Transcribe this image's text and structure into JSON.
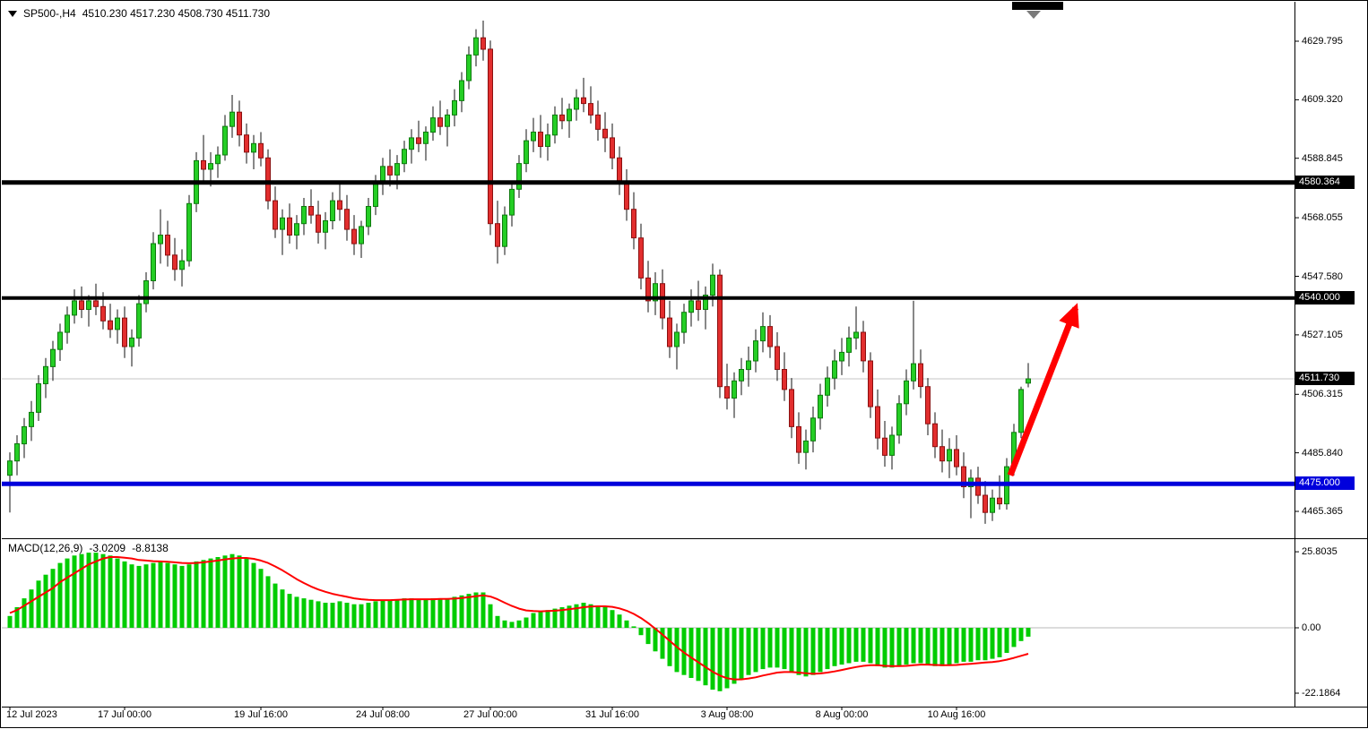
{
  "header": {
    "title": "SP500-,H4",
    "ohlc": "4510.230 4517.230 4508.730 4511.730"
  },
  "macd_label": {
    "name": "MACD(12,26,9)",
    "value": "-3.0209",
    "signal_value": "-8.8138"
  },
  "colors": {
    "bull": "#25CE25",
    "bull_border": "#0E7A0E",
    "bear": "#E22E2E",
    "bear_border": "#8B1010",
    "wick": "#111111",
    "macd_histogram": "#00CC00",
    "macd_signal": "#FF0000",
    "current_price_line": "#C4C4C4",
    "axis_text": "#000000"
  },
  "chart_data": [
    {
      "type": "candlestick",
      "title": "SP500- H4",
      "timeframe": "H4",
      "ohlc_current": {
        "open": 4510.23,
        "high": 4517.23,
        "low": 4508.73,
        "close": 4511.73
      },
      "ylim": [
        4455,
        4645
      ],
      "y_ticks": [
        "4629.795",
        "4609.320",
        "4588.845",
        "4568.055",
        "4547.580",
        "4527.105",
        "4506.315",
        "4485.840",
        "4465.365"
      ],
      "x_labels": [
        {
          "label": "12 Jul 2023",
          "bar": 0
        },
        {
          "label": "17 Jul 00:00",
          "bar": 16
        },
        {
          "label": "19 Jul 16:00",
          "bar": 35
        },
        {
          "label": "24 Jul 08:00",
          "bar": 52
        },
        {
          "label": "27 Jul 00:00",
          "bar": 67
        },
        {
          "label": "31 Jul 16:00",
          "bar": 84
        },
        {
          "label": "3 Aug 08:00",
          "bar": 100
        },
        {
          "label": "8 Aug 00:00",
          "bar": 116
        },
        {
          "label": "10 Aug 16:00",
          "bar": 132
        }
      ],
      "levels": [
        {
          "price": 4580.364,
          "label": "4580.364",
          "color": "#000000",
          "width": 5
        },
        {
          "price": 4540.0,
          "label": "4540.000",
          "color": "#000000",
          "width": 4
        },
        {
          "price": 4475.0,
          "label": "4475.000",
          "color": "#0000DC",
          "width": 5
        }
      ],
      "current_price": {
        "value": 4511.73,
        "label": "4511.730"
      },
      "annotation_arrow": {
        "from": {
          "bar": 139.5,
          "price": 4478
        },
        "to": {
          "bar": 148.6,
          "price": 4536.5
        },
        "color": "#FF0000"
      },
      "candles": [
        [
          4478,
          4486,
          4465,
          4483
        ],
        [
          4483,
          4492,
          4478,
          4489
        ],
        [
          4489,
          4498,
          4484,
          4495
        ],
        [
          4495,
          4504,
          4490,
          4500
        ],
        [
          4500,
          4513,
          4497,
          4510
        ],
        [
          4510,
          4519,
          4505,
          4516
        ],
        [
          4516,
          4525,
          4511,
          4522
        ],
        [
          4522,
          4531,
          4518,
          4528
        ],
        [
          4528,
          4537,
          4524,
          4534
        ],
        [
          4534,
          4543,
          4531,
          4539
        ],
        [
          4539,
          4544,
          4533,
          4536
        ],
        [
          4536,
          4541,
          4530,
          4539
        ],
        [
          4539,
          4545,
          4534,
          4537
        ],
        [
          4537,
          4542,
          4529,
          4532
        ],
        [
          4532,
          4538,
          4526,
          4529
        ],
        [
          4529,
          4536,
          4524,
          4533
        ],
        [
          4533,
          4537,
          4519,
          4523
        ],
        [
          4523,
          4529,
          4516,
          4526
        ],
        [
          4526,
          4541,
          4523,
          4538
        ],
        [
          4538,
          4549,
          4535,
          4546
        ],
        [
          4546,
          4563,
          4543,
          4559
        ],
        [
          4559,
          4571,
          4552,
          4562
        ],
        [
          4562,
          4567,
          4551,
          4555
        ],
        [
          4555,
          4561,
          4546,
          4550
        ],
        [
          4550,
          4557,
          4544,
          4553
        ],
        [
          4553,
          4576,
          4551,
          4573
        ],
        [
          4573,
          4591,
          4570,
          4588
        ],
        [
          4588,
          4597,
          4581,
          4585
        ],
        [
          4585,
          4591,
          4579,
          4587
        ],
        [
          4587,
          4593,
          4582,
          4590
        ],
        [
          4590,
          4604,
          4588,
          4600
        ],
        [
          4600,
          4611,
          4596,
          4605
        ],
        [
          4605,
          4609,
          4593,
          4597
        ],
        [
          4597,
          4601,
          4587,
          4591
        ],
        [
          4591,
          4597,
          4585,
          4594
        ],
        [
          4594,
          4598,
          4586,
          4589
        ],
        [
          4589,
          4592,
          4571,
          4574
        ],
        [
          4574,
          4579,
          4561,
          4564
        ],
        [
          4564,
          4571,
          4555,
          4568
        ],
        [
          4568,
          4573,
          4559,
          4562
        ],
        [
          4562,
          4569,
          4557,
          4566
        ],
        [
          4566,
          4575,
          4562,
          4572
        ],
        [
          4572,
          4578,
          4566,
          4569
        ],
        [
          4569,
          4574,
          4559,
          4563
        ],
        [
          4563,
          4570,
          4557,
          4567
        ],
        [
          4567,
          4577,
          4564,
          4574
        ],
        [
          4574,
          4580,
          4567,
          4571
        ],
        [
          4571,
          4576,
          4560,
          4564
        ],
        [
          4564,
          4569,
          4555,
          4559
        ],
        [
          4559,
          4567,
          4554,
          4565
        ],
        [
          4565,
          4575,
          4562,
          4572
        ],
        [
          4572,
          4583,
          4569,
          4580
        ],
        [
          4580,
          4589,
          4576,
          4586
        ],
        [
          4586,
          4592,
          4579,
          4583
        ],
        [
          4583,
          4590,
          4578,
          4587
        ],
        [
          4587,
          4595,
          4584,
          4592
        ],
        [
          4592,
          4599,
          4587,
          4596
        ],
        [
          4596,
          4602,
          4591,
          4594
        ],
        [
          4594,
          4600,
          4588,
          4598
        ],
        [
          4598,
          4607,
          4595,
          4603
        ],
        [
          4603,
          4609,
          4597,
          4600
        ],
        [
          4600,
          4606,
          4593,
          4604
        ],
        [
          4604,
          4613,
          4600,
          4609
        ],
        [
          4609,
          4619,
          4605,
          4616
        ],
        [
          4616,
          4628,
          4613,
          4625
        ],
        [
          4625,
          4634,
          4621,
          4631
        ],
        [
          4631,
          4637,
          4623,
          4627
        ],
        [
          4627,
          4630,
          4562,
          4566
        ],
        [
          4566,
          4574,
          4552,
          4558
        ],
        [
          4558,
          4572,
          4555,
          4569
        ],
        [
          4569,
          4581,
          4565,
          4578
        ],
        [
          4578,
          4590,
          4575,
          4587
        ],
        [
          4587,
          4599,
          4584,
          4595
        ],
        [
          4595,
          4603,
          4591,
          4598
        ],
        [
          4598,
          4604,
          4589,
          4593
        ],
        [
          4593,
          4601,
          4588,
          4597
        ],
        [
          4597,
          4607,
          4594,
          4604
        ],
        [
          4604,
          4610,
          4599,
          4602
        ],
        [
          4602,
          4608,
          4596,
          4606
        ],
        [
          4606,
          4613,
          4602,
          4610
        ],
        [
          4610,
          4617,
          4605,
          4608
        ],
        [
          4608,
          4614,
          4601,
          4604
        ],
        [
          4604,
          4609,
          4595,
          4599
        ],
        [
          4599,
          4605,
          4591,
          4596
        ],
        [
          4596,
          4601,
          4585,
          4589
        ],
        [
          4589,
          4593,
          4576,
          4580
        ],
        [
          4580,
          4585,
          4567,
          4571
        ],
        [
          4571,
          4577,
          4557,
          4561
        ],
        [
          4561,
          4566,
          4543,
          4547
        ],
        [
          4547,
          4553,
          4535,
          4539
        ],
        [
          4539,
          4549,
          4534,
          4545
        ],
        [
          4545,
          4550,
          4529,
          4533
        ],
        [
          4533,
          4539,
          4519,
          4523
        ],
        [
          4523,
          4531,
          4515,
          4528
        ],
        [
          4528,
          4538,
          4524,
          4535
        ],
        [
          4535,
          4543,
          4530,
          4539
        ],
        [
          4539,
          4546,
          4532,
          4536
        ],
        [
          4536,
          4544,
          4529,
          4541
        ],
        [
          4541,
          4552,
          4537,
          4548
        ],
        [
          4548,
          4550,
          4505,
          4509
        ],
        [
          4509,
          4517,
          4501,
          4505
        ],
        [
          4505,
          4514,
          4498,
          4511
        ],
        [
          4511,
          4519,
          4506,
          4515
        ],
        [
          4515,
          4523,
          4509,
          4518
        ],
        [
          4518,
          4529,
          4514,
          4525
        ],
        [
          4525,
          4535,
          4521,
          4530
        ],
        [
          4530,
          4534,
          4519,
          4523
        ],
        [
          4523,
          4528,
          4511,
          4515
        ],
        [
          4515,
          4521,
          4504,
          4508
        ],
        [
          4508,
          4512,
          4491,
          4495
        ],
        [
          4495,
          4500,
          4482,
          4486
        ],
        [
          4486,
          4494,
          4480,
          4490
        ],
        [
          4490,
          4502,
          4486,
          4498
        ],
        [
          4498,
          4510,
          4494,
          4506
        ],
        [
          4506,
          4516,
          4502,
          4512
        ],
        [
          4512,
          4522,
          4508,
          4518
        ],
        [
          4518,
          4526,
          4513,
          4521
        ],
        [
          4521,
          4530,
          4516,
          4526
        ],
        [
          4526,
          4537,
          4522,
          4528
        ],
        [
          4528,
          4532,
          4514,
          4518
        ],
        [
          4518,
          4521,
          4498,
          4502
        ],
        [
          4502,
          4508,
          4487,
          4491
        ],
        [
          4491,
          4497,
          4481,
          4485
        ],
        [
          4485,
          4495,
          4480,
          4492
        ],
        [
          4492,
          4506,
          4489,
          4503
        ],
        [
          4503,
          4515,
          4499,
          4511
        ],
        [
          4511,
          4539,
          4508,
          4517
        ],
        [
          4517,
          4522,
          4505,
          4509
        ],
        [
          4509,
          4512,
          4492,
          4496
        ],
        [
          4496,
          4500,
          4484,
          4488
        ],
        [
          4488,
          4494,
          4479,
          4483
        ],
        [
          4483,
          4491,
          4477,
          4487
        ],
        [
          4487,
          4492,
          4478,
          4481
        ],
        [
          4481,
          4486,
          4470,
          4474
        ],
        [
          4474,
          4480,
          4463,
          4477
        ],
        [
          4477,
          4481,
          4468,
          4471
        ],
        [
          4471,
          4476,
          4461,
          4465
        ],
        [
          4465,
          4473,
          4462,
          4470
        ],
        [
          4470,
          4478,
          4466,
          4468
        ],
        [
          4468,
          4484,
          4466,
          4481
        ],
        [
          4481,
          4496,
          4478,
          4493
        ],
        [
          4493,
          4509,
          4491,
          4508
        ],
        [
          4510.23,
          4517.23,
          4508.73,
          4511.73
        ]
      ]
    },
    {
      "type": "bar",
      "name": "MACD(12,26,9)",
      "y_ticks": [
        "25.8035",
        "0.00",
        "-22.1864"
      ],
      "ylim": [
        -26,
        30
      ],
      "current_values": {
        "macd": -3.0209,
        "signal": -8.8138
      },
      "histogram": [
        4,
        7,
        10,
        13,
        16,
        18,
        20,
        22,
        23.5,
        24.5,
        25,
        25.5,
        25.5,
        25,
        24.5,
        23.5,
        22.5,
        21.5,
        21,
        21.5,
        22,
        22.5,
        22,
        21.5,
        21,
        21.5,
        22.5,
        23,
        23.5,
        24,
        24.5,
        25,
        24.5,
        23.5,
        22,
        20,
        17.5,
        15,
        13,
        11.5,
        10.5,
        10,
        9.5,
        9,
        8.5,
        8.5,
        9,
        8.5,
        8,
        8,
        8.5,
        9,
        9.5,
        9.5,
        9.5,
        10,
        10,
        9.5,
        9.5,
        10,
        10,
        10,
        10.5,
        11,
        11.5,
        12,
        12,
        8,
        4,
        2.5,
        2,
        2.5,
        3.5,
        5,
        5.5,
        6,
        6.5,
        7,
        7.5,
        8,
        8.5,
        8,
        7.5,
        7,
        6,
        4.5,
        2.5,
        0.5,
        -2.5,
        -5.5,
        -8,
        -10.5,
        -13,
        -15,
        -16,
        -17,
        -18,
        -19.5,
        -21,
        -21.5,
        -20.5,
        -19,
        -17.5,
        -16,
        -15,
        -14,
        -13.5,
        -13.5,
        -14,
        -15,
        -16,
        -16.5,
        -16,
        -15,
        -14,
        -13,
        -12.5,
        -12,
        -11.5,
        -11.5,
        -12,
        -13,
        -13.5,
        -13.5,
        -13,
        -12.5,
        -12,
        -12,
        -12.5,
        -13,
        -13,
        -12.5,
        -12,
        -11.5,
        -11.5,
        -11,
        -11,
        -10.5,
        -10,
        -8.5,
        -6.5,
        -4.5,
        -3.02
      ],
      "series": [
        {
          "name": "signal",
          "values": [
            5,
            6,
            7.5,
            9,
            10.5,
            12,
            13.5,
            15.5,
            17,
            18.5,
            20,
            21.5,
            22.5,
            23.5,
            24,
            24,
            23.8,
            23.5,
            23,
            22.8,
            22.6,
            22.5,
            22.4,
            22.2,
            22,
            21.9,
            22,
            22.2,
            22.5,
            22.8,
            23.2,
            23.5,
            23.7,
            23.7,
            23.4,
            22.8,
            22,
            20.8,
            19.5,
            18,
            16.5,
            15.2,
            14,
            13,
            12.2,
            11.5,
            11,
            10.5,
            10,
            9.7,
            9.5,
            9.4,
            9.4,
            9.4,
            9.5,
            9.6,
            9.7,
            9.7,
            9.7,
            9.7,
            9.8,
            9.8,
            9.9,
            10.1,
            10.4,
            10.7,
            11,
            10.6,
            9.7,
            8.5,
            7.4,
            6.5,
            5.9,
            5.7,
            5.6,
            5.7,
            5.8,
            6,
            6.3,
            6.6,
            7,
            7.2,
            7.3,
            7.3,
            7.1,
            6.6,
            5.8,
            4.7,
            3.3,
            1.6,
            -0.3,
            -2.3,
            -4.4,
            -6.5,
            -8.4,
            -10.1,
            -11.7,
            -13.3,
            -14.9,
            -16.2,
            -17.1,
            -17.5,
            -17.5,
            -17.2,
            -16.8,
            -16.2,
            -15.7,
            -15.2,
            -15,
            -15,
            -15.2,
            -15.4,
            -15.6,
            -15.5,
            -15.2,
            -14.8,
            -14.3,
            -13.8,
            -13.3,
            -12.9,
            -12.7,
            -12.7,
            -12.9,
            -13,
            -13,
            -12.9,
            -12.7,
            -12.5,
            -12.5,
            -12.6,
            -12.7,
            -12.7,
            -12.6,
            -12.4,
            -12.2,
            -12,
            -11.8,
            -11.6,
            -11.3,
            -10.8,
            -10.2,
            -9.5,
            -8.81
          ]
        }
      ]
    }
  ]
}
